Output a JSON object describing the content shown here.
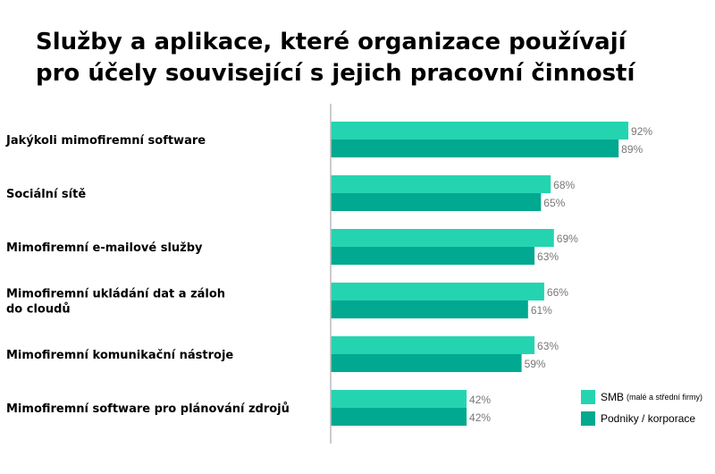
{
  "chart_data": {
    "type": "bar",
    "orientation": "horizontal",
    "title": [
      "Služby a aplikace, které organizace používají",
      "pro účely související s jejich pracovní činností"
    ],
    "categories": [
      [
        "Jakýkoli mimofiremní software"
      ],
      [
        "Sociální sítě"
      ],
      [
        "Mimofiremní e-mailové služby"
      ],
      [
        "Mimofiremní ukládání dat a záloh",
        "do cloudů"
      ],
      [
        "Mimofiremní komunikační nástroje"
      ],
      [
        "Mimofiremní software pro plánování zdrojů"
      ]
    ],
    "series": [
      {
        "name": "SMB",
        "note": "(malé a střední firmy)",
        "color": "#24d4b0",
        "values": [
          92,
          68,
          69,
          66,
          63,
          42
        ]
      },
      {
        "name": "Podniky / korporace",
        "color": "#00a98f",
        "values": [
          89,
          65,
          63,
          61,
          59,
          42
        ]
      }
    ],
    "value_suffix": "%",
    "xlim": [
      0,
      100
    ],
    "grid": false,
    "legend_position": "bottom-right"
  }
}
